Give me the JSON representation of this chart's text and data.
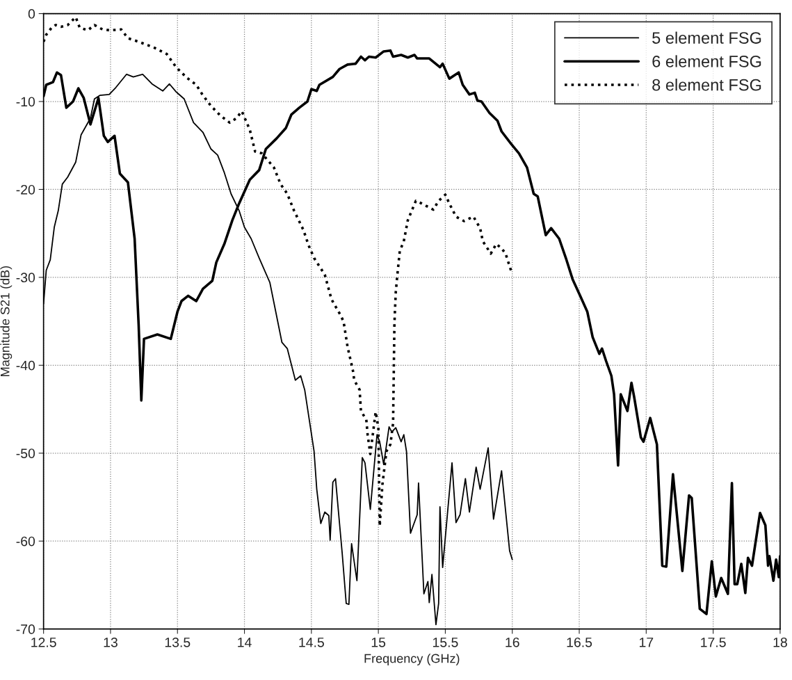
{
  "chart_data": {
    "type": "line",
    "xlabel": "Frequency (GHz)",
    "ylabel": "Magnitude S21 (dB)",
    "xlim": [
      12.5,
      18
    ],
    "xticks": [
      12.5,
      13,
      13.5,
      14,
      14.5,
      15,
      15.5,
      16,
      16.5,
      17,
      17.5,
      18
    ],
    "ylim": [
      -70,
      0
    ],
    "yticks": [
      -70,
      -60,
      -50,
      -40,
      -30,
      -20,
      -10,
      0
    ],
    "grid": true,
    "legend": "top right",
    "marker": "none",
    "series": [
      {
        "name": "5 element FSG",
        "color": "#000000",
        "line_style": "solid",
        "x": [
          12.5,
          12.52,
          12.55,
          12.58,
          12.61,
          12.64,
          12.68,
          12.74,
          12.78,
          12.85,
          12.88,
          12.92,
          12.99,
          13.04,
          13.12,
          13.17,
          13.24,
          13.31,
          13.39,
          13.44,
          13.49,
          13.55,
          13.62,
          13.69,
          13.75,
          13.8,
          13.85,
          13.9,
          13.96,
          14.0,
          14.05,
          14.11,
          14.19,
          14.28,
          14.32,
          14.38,
          14.42,
          14.45,
          14.52,
          14.54,
          14.57,
          14.6,
          14.63,
          14.64,
          14.66,
          14.68,
          14.73,
          14.76,
          14.78,
          14.8,
          14.84,
          14.88,
          14.9,
          14.94,
          14.99,
          15.01,
          15.04,
          15.08,
          15.1,
          15.13,
          15.17,
          15.19,
          15.21,
          15.24,
          15.29,
          15.3,
          15.34,
          15.37,
          15.38,
          15.4,
          15.43,
          15.45,
          15.46,
          15.48,
          15.55,
          15.58,
          15.61,
          15.65,
          15.68,
          15.73,
          15.76,
          15.82,
          15.86,
          15.92,
          15.98,
          16.0
        ],
        "values": [
          -33,
          -29.2,
          -28,
          -24.3,
          -22.4,
          -19.4,
          -18.6,
          -16.9,
          -13.8,
          -11.9,
          -9.7,
          -9.3,
          -9.2,
          -8.4,
          -6.9,
          -7.2,
          -6.9,
          -8.0,
          -8.8,
          -8.0,
          -8.9,
          -9.7,
          -12.4,
          -13.5,
          -15.4,
          -16.1,
          -18.1,
          -20.5,
          -22.4,
          -24.3,
          -25.6,
          -27.8,
          -30.6,
          -37.4,
          -38.1,
          -41.7,
          -41.2,
          -42.8,
          -49.8,
          -54.1,
          -58.0,
          -56.7,
          -57.1,
          -59.9,
          -53.3,
          -52.9,
          -61.4,
          -67.1,
          -67.2,
          -60.3,
          -64.5,
          -50.5,
          -51.1,
          -56.4,
          -47.9,
          -48.7,
          -51.3,
          -47.0,
          -47.6,
          -47.1,
          -48.7,
          -47.9,
          -49.8,
          -59.1,
          -57.0,
          -53.4,
          -66.0,
          -64.6,
          -67.0,
          -63.8,
          -69.5,
          -67.1,
          -56.1,
          -63.0,
          -51.1,
          -57.9,
          -57.0,
          -52.9,
          -56.7,
          -51.6,
          -54.1,
          -49.4,
          -57.5,
          -52.0,
          -61.1,
          -62.1
        ]
      },
      {
        "name": "6 element FSG",
        "color": "#000000",
        "line_style": "solid",
        "x": [
          12.5,
          12.52,
          12.57,
          12.6,
          12.63,
          12.67,
          12.72,
          12.76,
          12.8,
          12.85,
          12.91,
          12.95,
          12.98,
          13.03,
          13.07,
          13.13,
          13.18,
          13.21,
          13.23,
          13.25,
          13.35,
          13.45,
          13.5,
          13.53,
          13.58,
          13.64,
          13.69,
          13.76,
          13.79,
          13.85,
          13.91,
          13.96,
          14.04,
          14.11,
          14.16,
          14.24,
          14.31,
          14.35,
          14.41,
          14.47,
          14.5,
          14.54,
          14.56,
          14.66,
          14.71,
          14.77,
          14.83,
          14.87,
          14.9,
          14.93,
          14.98,
          15.04,
          15.09,
          15.11,
          15.17,
          15.22,
          15.27,
          15.29,
          15.38,
          15.46,
          15.48,
          15.53,
          15.6,
          15.63,
          15.68,
          15.72,
          15.74,
          15.77,
          15.83,
          15.89,
          15.92,
          15.99,
          16.05,
          16.11,
          16.16,
          16.19,
          16.25,
          16.29,
          16.35,
          16.4,
          16.45,
          16.51,
          16.56,
          16.6,
          16.65,
          16.67,
          16.7,
          16.74,
          16.76,
          16.79,
          16.81,
          16.86,
          16.89,
          16.91,
          16.96,
          16.98,
          17.03,
          17.08,
          17.12,
          17.15,
          17.2,
          17.27,
          17.32,
          17.34,
          17.4,
          17.45,
          17.49,
          17.52,
          17.56,
          17.61,
          17.64,
          17.66,
          17.68,
          17.71,
          17.74,
          17.76,
          17.79,
          17.85,
          17.89,
          17.91,
          17.92,
          17.95,
          17.97,
          17.99,
          18.0
        ],
        "values": [
          -9.4,
          -8.1,
          -7.8,
          -6.7,
          -7.0,
          -10.7,
          -10.0,
          -8.5,
          -9.6,
          -12.6,
          -9.6,
          -13.9,
          -14.6,
          -13.9,
          -18.2,
          -19.2,
          -25.6,
          -35.4,
          -44.0,
          -37.0,
          -36.5,
          -37.0,
          -33.9,
          -32.7,
          -32.1,
          -32.7,
          -31.3,
          -30.4,
          -28.3,
          -26.2,
          -23.5,
          -21.6,
          -18.9,
          -17.8,
          -15.4,
          -14.2,
          -13.0,
          -11.5,
          -10.7,
          -10.0,
          -8.6,
          -8.8,
          -8.1,
          -7.2,
          -6.3,
          -5.8,
          -5.7,
          -4.9,
          -5.3,
          -4.9,
          -5.0,
          -4.3,
          -4.2,
          -4.9,
          -4.7,
          -5.0,
          -4.7,
          -5.1,
          -5.1,
          -6.1,
          -5.7,
          -7.4,
          -6.7,
          -8.1,
          -9.2,
          -9.0,
          -9.9,
          -10.0,
          -11.3,
          -12.2,
          -13.4,
          -14.8,
          -15.9,
          -17.5,
          -20.5,
          -20.8,
          -25.2,
          -24.4,
          -25.6,
          -27.8,
          -30.2,
          -32.2,
          -33.9,
          -36.8,
          -38.7,
          -38.1,
          -39.5,
          -41.2,
          -43.3,
          -51.4,
          -43.3,
          -45.2,
          -42.0,
          -43.6,
          -48.2,
          -48.7,
          -46.0,
          -49.0,
          -62.8,
          -62.9,
          -52.4,
          -63.4,
          -54.8,
          -55.1,
          -67.7,
          -68.3,
          -62.3,
          -66.3,
          -64.2,
          -66.0,
          -53.4,
          -64.9,
          -64.9,
          -62.6,
          -65.9,
          -61.9,
          -62.8,
          -56.8,
          -58.2,
          -62.8,
          -61.7,
          -64.5,
          -62.1,
          -64.1,
          -61.7
        ]
      },
      {
        "name": "8 element FSG",
        "color": "#000000",
        "line_style": "dotted",
        "x": [
          12.5,
          12.52,
          12.56,
          12.59,
          12.63,
          12.68,
          12.74,
          12.77,
          12.83,
          12.88,
          12.94,
          13.0,
          13.08,
          13.13,
          13.21,
          13.28,
          13.33,
          13.42,
          13.49,
          13.57,
          13.64,
          13.69,
          13.75,
          13.82,
          13.89,
          13.94,
          13.98,
          14.04,
          14.08,
          14.13,
          14.22,
          14.27,
          14.32,
          14.37,
          14.44,
          14.48,
          14.52,
          14.6,
          14.65,
          14.71,
          14.74,
          14.77,
          14.81,
          14.82,
          14.86,
          14.87,
          14.91,
          14.92,
          14.94,
          14.98,
          15.0,
          15.01,
          15.03,
          15.06,
          15.09,
          15.11,
          15.12,
          15.13,
          15.14,
          15.16,
          15.19,
          15.22,
          15.28,
          15.31,
          15.36,
          15.41,
          15.45,
          15.5,
          15.53,
          15.58,
          15.64,
          15.71,
          15.76,
          15.78,
          15.84,
          15.88,
          15.92,
          15.95,
          15.99
        ],
        "values": [
          -3.2,
          -2.4,
          -1.6,
          -1.3,
          -1.5,
          -1.3,
          -0.4,
          -1.6,
          -1.9,
          -1.3,
          -1.8,
          -1.9,
          -1.8,
          -2.8,
          -3.2,
          -3.6,
          -3.9,
          -4.6,
          -6.1,
          -7.3,
          -8.1,
          -9.3,
          -10.5,
          -11.6,
          -12.4,
          -11.9,
          -11.1,
          -13.2,
          -15.7,
          -15.9,
          -17.5,
          -19.4,
          -20.5,
          -22.4,
          -24.6,
          -26.4,
          -27.8,
          -29.7,
          -32.5,
          -34.1,
          -35.0,
          -37.9,
          -40.6,
          -41.7,
          -42.8,
          -45.2,
          -46.2,
          -47.9,
          -50.1,
          -45.3,
          -47.1,
          -58.3,
          -53.6,
          -49.8,
          -49.0,
          -46.6,
          -35.2,
          -31.7,
          -30.0,
          -27.0,
          -25.9,
          -23.5,
          -21.3,
          -21.5,
          -21.9,
          -22.3,
          -21.3,
          -20.6,
          -21.6,
          -23.1,
          -23.6,
          -23.1,
          -24.4,
          -25.9,
          -27.3,
          -26.2,
          -26.7,
          -27.3,
          -29.2
        ]
      }
    ]
  }
}
